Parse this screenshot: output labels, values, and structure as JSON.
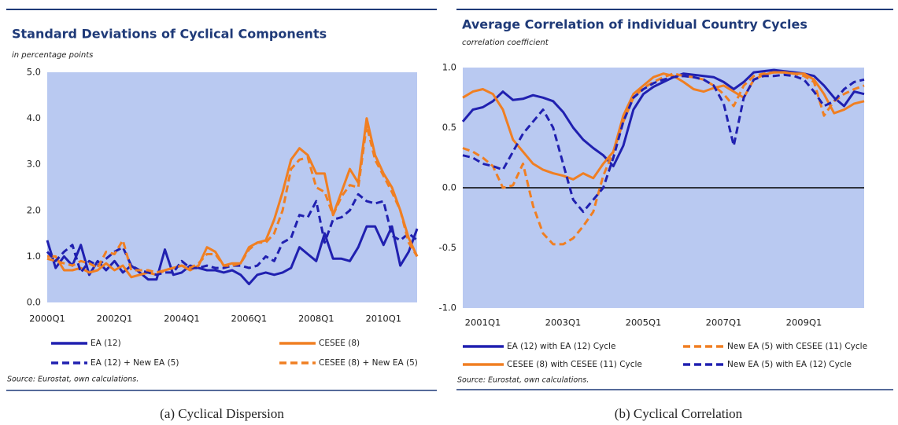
{
  "chart_data": [
    {
      "type": "line",
      "title": "Standard Deviations of Cyclical Components",
      "subtitle": "in percentage points",
      "source": "Source: Eurostat, own calculations.",
      "caption": "(a) Cyclical Dispersion",
      "categories": [
        "2000Q1",
        null,
        null,
        null,
        null,
        null,
        null,
        null,
        "2002Q1",
        null,
        null,
        null,
        null,
        null,
        null,
        null,
        "2004Q1",
        null,
        null,
        null,
        null,
        null,
        null,
        null,
        "2006Q1",
        null,
        null,
        null,
        null,
        null,
        null,
        null,
        "2008Q1",
        null,
        null,
        null,
        null,
        null,
        null,
        null,
        "2010Q1",
        null,
        null,
        null,
        null
      ],
      "ylim": [
        0,
        5
      ],
      "yticks": [
        {
          "value": 0,
          "label": "0.0"
        },
        {
          "value": 1,
          "label": "1.0"
        },
        {
          "value": 2,
          "label": "2.0"
        },
        {
          "value": 3,
          "label": "3.0"
        },
        {
          "value": 4,
          "label": "4.0"
        },
        {
          "value": 5,
          "label": "5.0"
        }
      ],
      "grid": false,
      "background": "#b9c9f1",
      "series": [
        {
          "name": "EA (12)",
          "color": "#2020b0",
          "dash": false,
          "values": [
            1.35,
            0.75,
            1.0,
            0.8,
            1.25,
            0.6,
            0.9,
            0.7,
            0.9,
            0.65,
            0.8,
            0.65,
            0.5,
            0.5,
            1.15,
            0.6,
            0.65,
            0.8,
            0.75,
            0.7,
            0.7,
            0.65,
            0.7,
            0.6,
            0.4,
            0.6,
            0.65,
            0.6,
            0.65,
            0.75,
            1.2,
            1.05,
            0.9,
            1.5,
            0.95,
            0.95,
            0.9,
            1.2,
            1.65,
            1.65,
            1.25,
            1.65,
            0.8,
            1.1,
            1.6
          ]
        },
        {
          "name": "CESEE (8)",
          "color": "#f07f22",
          "dash": false,
          "values": [
            1.0,
            1.0,
            0.7,
            0.7,
            0.75,
            0.65,
            0.7,
            0.85,
            0.7,
            0.8,
            0.55,
            0.6,
            0.65,
            0.6,
            0.7,
            0.75,
            0.8,
            0.7,
            0.8,
            1.2,
            1.1,
            0.8,
            0.85,
            0.85,
            1.2,
            1.3,
            1.35,
            1.8,
            2.4,
            3.1,
            3.35,
            3.2,
            2.8,
            2.8,
            1.9,
            2.4,
            2.9,
            2.6,
            4.0,
            3.2,
            2.8,
            2.5,
            2.0,
            1.4,
            1.0
          ]
        },
        {
          "name": "EA (12) + New EA (5)",
          "color": "#2020b0",
          "dash": true,
          "values": [
            1.1,
            0.9,
            1.1,
            1.25,
            0.65,
            0.9,
            0.8,
            0.95,
            1.1,
            1.2,
            0.8,
            0.7,
            0.65,
            0.6,
            0.65,
            0.65,
            0.9,
            0.75,
            0.75,
            0.8,
            0.75,
            0.75,
            0.8,
            0.8,
            0.75,
            0.8,
            1.0,
            0.9,
            1.3,
            1.4,
            1.9,
            1.85,
            2.2,
            1.3,
            1.8,
            1.85,
            2.0,
            2.35,
            2.2,
            2.15,
            2.2,
            1.45,
            1.35,
            1.5,
            1.35
          ]
        },
        {
          "name": "CESEE (8) + New EA (5)",
          "color": "#f07f22",
          "dash": true,
          "values": [
            0.95,
            0.9,
            0.85,
            0.8,
            0.9,
            0.85,
            0.75,
            1.1,
            1.05,
            1.35,
            0.7,
            0.7,
            0.7,
            0.65,
            0.7,
            0.75,
            0.8,
            0.75,
            0.85,
            1.05,
            1.05,
            0.8,
            0.8,
            0.85,
            1.15,
            1.3,
            1.3,
            1.5,
            2.0,
            2.9,
            3.1,
            3.15,
            2.5,
            2.4,
            1.9,
            2.3,
            2.55,
            2.5,
            3.85,
            3.1,
            2.75,
            2.4,
            2.0,
            1.3,
            1.0
          ]
        }
      ]
    },
    {
      "type": "line",
      "title": "Average Correlation of individual Country Cycles",
      "subtitle": "correlation coefficient",
      "source": "Source: Eurostat, own calculations.",
      "caption": "(b) Cyclical Correlation",
      "categories": [
        null,
        null,
        "2001Q1",
        null,
        null,
        null,
        null,
        null,
        null,
        null,
        "2003Q1",
        null,
        null,
        null,
        null,
        null,
        null,
        null,
        "2005Q1",
        null,
        null,
        null,
        null,
        null,
        null,
        null,
        "2007Q1",
        null,
        null,
        null,
        null,
        null,
        null,
        null,
        "2009Q1",
        null,
        null,
        null,
        null,
        null,
        null
      ],
      "ylim": [
        -1,
        1
      ],
      "yticks": [
        {
          "value": -1,
          "label": "-1.0"
        },
        {
          "value": -0.5,
          "label": "-0.5"
        },
        {
          "value": 0,
          "label": "0.0"
        },
        {
          "value": 0.5,
          "label": "0.5"
        },
        {
          "value": 1,
          "label": "1.0"
        }
      ],
      "grid": false,
      "zero_line": true,
      "background": "#b9c9f1",
      "series": [
        {
          "name": "EA (12) with EA (12) Cycle",
          "color": "#2020b0",
          "dash": false,
          "values": [
            0.55,
            0.65,
            0.67,
            0.72,
            0.8,
            0.73,
            0.74,
            0.77,
            0.75,
            0.72,
            0.63,
            0.5,
            0.4,
            0.33,
            0.27,
            0.18,
            0.35,
            0.65,
            0.78,
            0.84,
            0.88,
            0.92,
            0.95,
            0.94,
            0.93,
            0.92,
            0.88,
            0.82,
            0.88,
            0.96,
            0.97,
            0.98,
            0.97,
            0.96,
            0.95,
            0.93,
            0.85,
            0.75,
            0.68,
            0.8,
            0.78
          ]
        },
        {
          "name": "New EA (5) with CESEE (11) Cycle",
          "color": "#f07f22",
          "dash": true,
          "values": [
            0.33,
            0.3,
            0.25,
            0.18,
            0.0,
            0.02,
            0.2,
            -0.15,
            -0.38,
            -0.47,
            -0.47,
            -0.42,
            -0.32,
            -0.2,
            0.1,
            0.3,
            0.55,
            0.75,
            0.83,
            0.88,
            0.92,
            0.95,
            0.93,
            0.92,
            0.9,
            0.85,
            0.78,
            0.68,
            0.85,
            0.93,
            0.95,
            0.96,
            0.96,
            0.95,
            0.93,
            0.88,
            0.6,
            0.72,
            0.78,
            0.82,
            0.85
          ]
        },
        {
          "name": "CESEE (8) with CESEE (11) Cycle",
          "color": "#f07f22",
          "dash": false,
          "values": [
            0.75,
            0.8,
            0.82,
            0.78,
            0.65,
            0.4,
            0.3,
            0.2,
            0.15,
            0.12,
            0.1,
            0.07,
            0.12,
            0.08,
            0.2,
            0.3,
            0.6,
            0.78,
            0.85,
            0.92,
            0.95,
            0.93,
            0.88,
            0.82,
            0.8,
            0.83,
            0.85,
            0.8,
            0.75,
            0.9,
            0.94,
            0.96,
            0.96,
            0.95,
            0.95,
            0.9,
            0.78,
            0.62,
            0.65,
            0.7,
            0.72
          ]
        },
        {
          "name": "New EA (5) with EA (12) Cycle",
          "color": "#2020b0",
          "dash": true,
          "values": [
            0.27,
            0.25,
            0.2,
            0.18,
            0.15,
            0.3,
            0.45,
            0.55,
            0.65,
            0.5,
            0.2,
            -0.1,
            -0.2,
            -0.1,
            0.0,
            0.25,
            0.55,
            0.75,
            0.82,
            0.87,
            0.9,
            0.92,
            0.93,
            0.92,
            0.9,
            0.85,
            0.7,
            0.35,
            0.75,
            0.9,
            0.93,
            0.93,
            0.94,
            0.93,
            0.9,
            0.8,
            0.68,
            0.72,
            0.82,
            0.88,
            0.9
          ]
        }
      ]
    }
  ]
}
